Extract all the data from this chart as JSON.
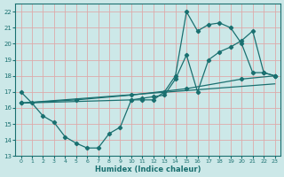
{
  "xlabel": "Humidex (Indice chaleur)",
  "xlim": [
    -0.5,
    23.5
  ],
  "ylim": [
    13,
    22.5
  ],
  "xticks": [
    0,
    1,
    2,
    3,
    4,
    5,
    6,
    7,
    8,
    9,
    10,
    11,
    12,
    13,
    14,
    15,
    16,
    17,
    18,
    19,
    20,
    21,
    22,
    23
  ],
  "yticks": [
    13,
    14,
    15,
    16,
    17,
    18,
    19,
    20,
    21,
    22
  ],
  "bg_color": "#cce8e8",
  "line_color": "#1a7070",
  "grid_color": "#ddaaaa",
  "line1_x": [
    0,
    1,
    2,
    3,
    4,
    5,
    6,
    7,
    8,
    9,
    10,
    11,
    12,
    13,
    14,
    15,
    16,
    17,
    18,
    19,
    20,
    21,
    22,
    23
  ],
  "line1_y": [
    17,
    16.3,
    15.5,
    15.1,
    14.2,
    13.8,
    13.5,
    13.5,
    14.4,
    14.8,
    16.5,
    16.5,
    16.5,
    17.0,
    18.0,
    22.0,
    20.8,
    21.2,
    21.3,
    21.0,
    20.0,
    18.2,
    18.2,
    18.0
  ],
  "line2_x": [
    0,
    10,
    11,
    12,
    13,
    14,
    15,
    16,
    17,
    18,
    19,
    20,
    21,
    22,
    23
  ],
  "line2_y": [
    16.3,
    16.5,
    16.6,
    16.7,
    16.8,
    17.8,
    19.3,
    17.0,
    19.0,
    19.5,
    19.8,
    20.2,
    20.8,
    18.2,
    18.0
  ],
  "line3_x": [
    0,
    23
  ],
  "line3_y": [
    16.3,
    17.5
  ],
  "line4_x": [
    0,
    5,
    10,
    15,
    20,
    23
  ],
  "line4_y": [
    16.3,
    16.5,
    16.8,
    17.2,
    17.8,
    18.0
  ]
}
